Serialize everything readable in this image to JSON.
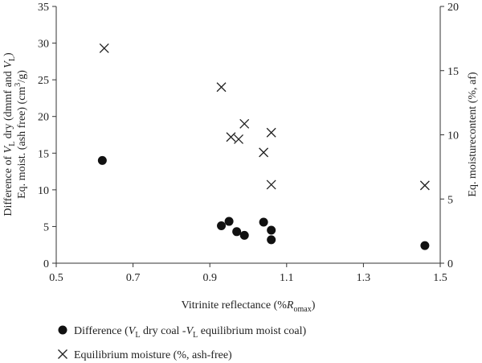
{
  "chart_data": {
    "type": "scatter",
    "xlabel": {
      "parts": [
        {
          "text": "Vitrinite reflectance (%",
          "style": "normal"
        },
        {
          "text": "R",
          "style": "italic"
        },
        {
          "text": "omax",
          "style": "sub"
        },
        {
          "text": ")",
          "style": "normal"
        }
      ]
    },
    "ylabel_left_line1": {
      "parts": [
        {
          "text": "Difference of ",
          "style": "normal"
        },
        {
          "text": "V",
          "style": "italic"
        },
        {
          "text": "L",
          "style": "sub"
        },
        {
          "text": " dry (dmmf and ",
          "style": "normal"
        },
        {
          "text": "V",
          "style": "italic"
        },
        {
          "text": "L",
          "style": "sub"
        },
        {
          "text": ")",
          "style": "normal"
        }
      ]
    },
    "ylabel_left_line2": {
      "parts": [
        {
          "text": "Eq. moist. (ash free) (cm",
          "style": "normal"
        },
        {
          "text": "3",
          "style": "sup"
        },
        {
          "text": "/g)",
          "style": "normal"
        }
      ]
    },
    "ylabel_right": "Eq. moisturecontent (%, af)",
    "xlim": [
      0.5,
      1.5
    ],
    "ylim_left": [
      0,
      35
    ],
    "ylim_right": [
      0,
      20
    ],
    "x_ticks": [
      "0.5",
      "0.7",
      "0.9",
      "1.1",
      "1.3",
      "1.5"
    ],
    "y_left_ticks": [
      "0",
      "5",
      "10",
      "15",
      "20",
      "25",
      "30",
      "35"
    ],
    "y_right_ticks": [
      "0",
      "5",
      "10",
      "15",
      "20"
    ],
    "grid": false,
    "legend_placement": "bottom",
    "series": [
      {
        "name_parts": [
          {
            "text": "Difference (",
            "style": "normal"
          },
          {
            "text": "V",
            "style": "italic"
          },
          {
            "text": "L",
            "style": "sub"
          },
          {
            "text": " dry coal -",
            "style": "normal"
          },
          {
            "text": "V",
            "style": "italic"
          },
          {
            "text": "L",
            "style": "sub"
          },
          {
            "text": " equilibrium moist coal)",
            "style": "normal"
          }
        ],
        "marker": "filled-circle",
        "axis": "left",
        "color": "#111111",
        "points": [
          [
            0.62,
            14.0
          ],
          [
            0.93,
            5.1
          ],
          [
            0.95,
            5.7
          ],
          [
            0.97,
            4.3
          ],
          [
            0.99,
            3.8
          ],
          [
            1.04,
            5.6
          ],
          [
            1.06,
            4.5
          ],
          [
            1.06,
            3.2
          ],
          [
            1.46,
            2.4
          ]
        ]
      },
      {
        "name_parts": [
          {
            "text": "Equilibrium moisture (%, ash-free)",
            "style": "normal"
          }
        ],
        "marker": "x",
        "axis": "left",
        "color": "#222222",
        "points": [
          [
            0.625,
            29.3
          ],
          [
            0.93,
            24.0
          ],
          [
            0.955,
            17.2
          ],
          [
            0.975,
            16.9
          ],
          [
            0.99,
            19.0
          ],
          [
            1.04,
            15.1
          ],
          [
            1.06,
            17.8
          ],
          [
            1.06,
            10.7
          ],
          [
            1.46,
            10.6
          ]
        ]
      }
    ]
  }
}
